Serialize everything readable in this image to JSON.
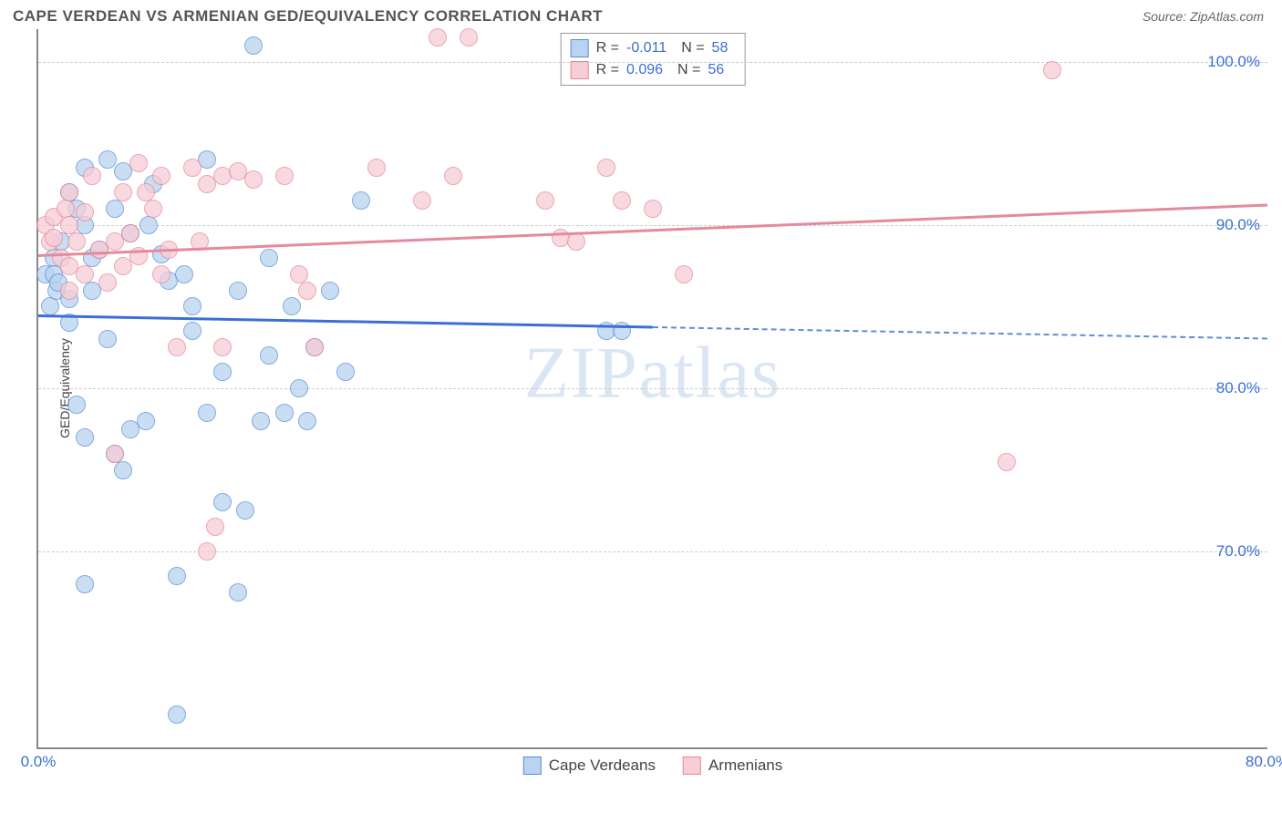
{
  "header": {
    "title": "CAPE VERDEAN VS ARMENIAN GED/EQUIVALENCY CORRELATION CHART",
    "source": "Source: ZipAtlas.com"
  },
  "chart": {
    "type": "scatter",
    "ylabel": "GED/Equivalency",
    "watermark": "ZIPatlas",
    "background_color": "#ffffff",
    "grid_color": "#cccccc",
    "axis_color": "#888888",
    "tick_color": "#3b6fd6",
    "xlim": [
      0,
      80
    ],
    "ylim": [
      58,
      102
    ],
    "yticks": [
      {
        "value": 70,
        "label": "70.0%"
      },
      {
        "value": 80,
        "label": "80.0%"
      },
      {
        "value": 90,
        "label": "90.0%"
      },
      {
        "value": 100,
        "label": "100.0%"
      }
    ],
    "xticks": [
      {
        "value": 0,
        "label": "0.0%"
      },
      {
        "value": 80,
        "label": "80.0%"
      }
    ],
    "series": [
      {
        "name": "Cape Verdeans",
        "fill_color": "#b9d3f0",
        "stroke_color": "#5a8fd6",
        "r_label": "R =",
        "r_value": "-0.011",
        "n_label": "N =",
        "n_value": "58",
        "trend": {
          "x1": 0,
          "y1": 84.5,
          "x2": 40,
          "y2": 83.8,
          "color": "#3b6fd6"
        },
        "trend_extrapolate": {
          "x1": 40,
          "y1": 83.8,
          "x2": 80,
          "y2": 83.1,
          "color": "#5a8fd6"
        },
        "points": [
          [
            0.5,
            87
          ],
          [
            0.8,
            85
          ],
          [
            1,
            88
          ],
          [
            1,
            87
          ],
          [
            1.2,
            86
          ],
          [
            1.3,
            86.5
          ],
          [
            1.5,
            89
          ],
          [
            2,
            84
          ],
          [
            2,
            85.5
          ],
          [
            2,
            92
          ],
          [
            2.5,
            79
          ],
          [
            2.5,
            91
          ],
          [
            3,
            93.5
          ],
          [
            3,
            90
          ],
          [
            3,
            77
          ],
          [
            3,
            68
          ],
          [
            3.5,
            86
          ],
          [
            3.5,
            88
          ],
          [
            4,
            88.5
          ],
          [
            4.5,
            83
          ],
          [
            4.5,
            94
          ],
          [
            5,
            91
          ],
          [
            5,
            76
          ],
          [
            5.5,
            75
          ],
          [
            5.5,
            93.3
          ],
          [
            6,
            89.5
          ],
          [
            6,
            77.5
          ],
          [
            7,
            78
          ],
          [
            7.2,
            90
          ],
          [
            7.5,
            92.5
          ],
          [
            8,
            88.2
          ],
          [
            8.5,
            86.6
          ],
          [
            9,
            60
          ],
          [
            9,
            68.5
          ],
          [
            9.5,
            87
          ],
          [
            10,
            83.5
          ],
          [
            10,
            85
          ],
          [
            11,
            94
          ],
          [
            11,
            78.5
          ],
          [
            12,
            81
          ],
          [
            12,
            73
          ],
          [
            13,
            67.5
          ],
          [
            13,
            86
          ],
          [
            13.5,
            72.5
          ],
          [
            14,
            101
          ],
          [
            14.5,
            78
          ],
          [
            15,
            88
          ],
          [
            15,
            82
          ],
          [
            16,
            78.5
          ],
          [
            16.5,
            85
          ],
          [
            17,
            80
          ],
          [
            17.5,
            78
          ],
          [
            18,
            82.5
          ],
          [
            19,
            86
          ],
          [
            20,
            81
          ],
          [
            21,
            91.5
          ],
          [
            37,
            83.5
          ],
          [
            38,
            83.5
          ]
        ]
      },
      {
        "name": "Armenians",
        "fill_color": "#f7cdd6",
        "stroke_color": "#e6899c",
        "r_label": "R =",
        "r_value": "0.096",
        "n_label": "N =",
        "n_value": "56",
        "trend": {
          "x1": 0,
          "y1": 88.2,
          "x2": 80,
          "y2": 91.3,
          "color": "#e6899c"
        },
        "points": [
          [
            0.5,
            90
          ],
          [
            0.8,
            89
          ],
          [
            1,
            89.2
          ],
          [
            1,
            90.5
          ],
          [
            1.5,
            88
          ],
          [
            1.8,
            91
          ],
          [
            2,
            87.5
          ],
          [
            2,
            90
          ],
          [
            2,
            86
          ],
          [
            2,
            92
          ],
          [
            2.5,
            89
          ],
          [
            3,
            90.8
          ],
          [
            3,
            87
          ],
          [
            3.5,
            93
          ],
          [
            4,
            88.5
          ],
          [
            4.5,
            86.5
          ],
          [
            5,
            89
          ],
          [
            5,
            76
          ],
          [
            5.5,
            92
          ],
          [
            5.5,
            87.5
          ],
          [
            6,
            89.5
          ],
          [
            6.5,
            93.8
          ],
          [
            6.5,
            88.1
          ],
          [
            7,
            92
          ],
          [
            7.5,
            91
          ],
          [
            8,
            93
          ],
          [
            8,
            87
          ],
          [
            8.5,
            88.5
          ],
          [
            9,
            82.5
          ],
          [
            10,
            93.5
          ],
          [
            10.5,
            89
          ],
          [
            11,
            92.5
          ],
          [
            11,
            70
          ],
          [
            11.5,
            71.5
          ],
          [
            12,
            93
          ],
          [
            12,
            82.5
          ],
          [
            13,
            93.3
          ],
          [
            14,
            92.8
          ],
          [
            16,
            93
          ],
          [
            17,
            87
          ],
          [
            17.5,
            86
          ],
          [
            18,
            82.5
          ],
          [
            22,
            93.5
          ],
          [
            25,
            91.5
          ],
          [
            26,
            101.5
          ],
          [
            27,
            93
          ],
          [
            28,
            101.5
          ],
          [
            33,
            91.5
          ],
          [
            34,
            89.2
          ],
          [
            35,
            89
          ],
          [
            37,
            93.5
          ],
          [
            38,
            91.5
          ],
          [
            40,
            91
          ],
          [
            42,
            87
          ],
          [
            63,
            75.5
          ],
          [
            66,
            99.5
          ]
        ]
      }
    ],
    "bottom_legend": [
      {
        "label": "Cape Verdeans",
        "fill": "#b9d3f0",
        "stroke": "#5a8fd6"
      },
      {
        "label": "Armenians",
        "fill": "#f7cdd6",
        "stroke": "#e6899c"
      }
    ]
  }
}
